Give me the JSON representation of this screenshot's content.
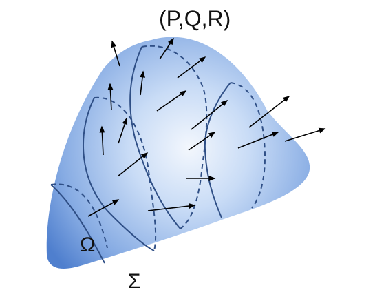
{
  "field_label": "(P,Q,R)",
  "region_label": "Ω",
  "surface_label": "Σ",
  "colors": {
    "surface_light": "#f3f7fd",
    "surface_mid": "#a9c6ee",
    "surface_dark": "#4f7fce",
    "curve": "#2f4f86",
    "arrow": "#000000"
  }
}
